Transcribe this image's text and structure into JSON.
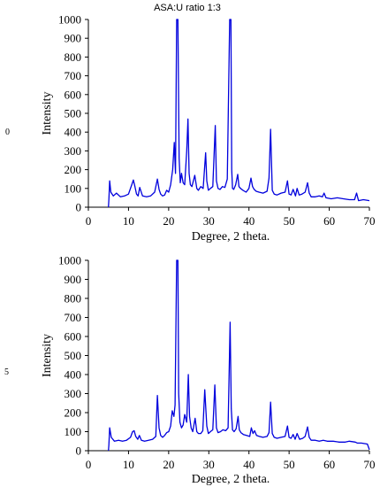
{
  "chart_data": [
    {
      "type": "line",
      "title": "ASA:U ratio 1:3",
      "side_label": "0",
      "xlabel": "Degree, 2 theta.",
      "ylabel": "Intensity",
      "xlim": [
        0,
        70
      ],
      "ylim": [
        0,
        1000
      ],
      "xticks": [
        0,
        10,
        20,
        30,
        40,
        50,
        60,
        70
      ],
      "yticks": [
        0,
        100,
        200,
        300,
        400,
        500,
        600,
        700,
        800,
        900,
        1000
      ],
      "grid": false,
      "series": [
        {
          "color": "#0000dd",
          "x": [
            5.0,
            5.1,
            5.3,
            5.6,
            6.2,
            7.0,
            8.0,
            9.0,
            10.0,
            10.8,
            11.2,
            11.6,
            12.0,
            12.4,
            12.8,
            13.5,
            14.5,
            15.5,
            16.5,
            17.2,
            17.6,
            18.0,
            18.5,
            19.0,
            19.5,
            20.0,
            20.5,
            21.0,
            21.4,
            21.7,
            22.0,
            22.3,
            22.6,
            22.9,
            23.2,
            23.6,
            24.0,
            24.5,
            24.8,
            25.1,
            25.4,
            25.8,
            26.5,
            27.0,
            27.4,
            28.0,
            28.6,
            29.2,
            29.5,
            29.9,
            30.4,
            31.0,
            31.6,
            31.9,
            32.3,
            32.8,
            33.4,
            34.0,
            34.6,
            35.2,
            35.5,
            35.7,
            35.9,
            36.2,
            36.7,
            37.2,
            37.5,
            37.9,
            38.5,
            39.3,
            40.0,
            40.5,
            40.9,
            41.3,
            41.8,
            42.5,
            43.5,
            44.5,
            45.0,
            45.4,
            45.8,
            46.3,
            47.0,
            48.0,
            49.0,
            49.6,
            50.0,
            50.5,
            51.0,
            51.6,
            52.0,
            52.5,
            53.2,
            54.0,
            54.6,
            55.0,
            55.5,
            56.5,
            57.5,
            58.3,
            58.7,
            59.2,
            60.5,
            62.0,
            63.5,
            65.0,
            66.3,
            66.8,
            67.3,
            68.5,
            70.0
          ],
          "y": [
            0,
            40,
            140,
            80,
            60,
            75,
            55,
            60,
            70,
            120,
            145,
            110,
            70,
            60,
            105,
            60,
            55,
            60,
            80,
            150,
            95,
            70,
            60,
            65,
            90,
            80,
            120,
            200,
            345,
            180,
            1000,
            1000,
            260,
            130,
            180,
            130,
            120,
            300,
            470,
            180,
            120,
            110,
            170,
            100,
            90,
            110,
            100,
            290,
            140,
            90,
            100,
            110,
            435,
            140,
            100,
            95,
            110,
            105,
            150,
            1000,
            1000,
            200,
            100,
            95,
            120,
            175,
            110,
            100,
            90,
            80,
            100,
            155,
            110,
            95,
            85,
            80,
            75,
            85,
            155,
            415,
            90,
            70,
            65,
            75,
            80,
            140,
            70,
            65,
            95,
            60,
            100,
            65,
            70,
            80,
            130,
            75,
            55,
            55,
            60,
            55,
            75,
            50,
            45,
            50,
            45,
            40,
            40,
            75,
            35,
            40,
            35
          ]
        }
      ]
    },
    {
      "type": "line",
      "title": "",
      "side_label": "5",
      "xlabel": "Degree, 2 theta.",
      "ylabel": "Intensity",
      "xlim": [
        0,
        70
      ],
      "ylim": [
        0,
        1000
      ],
      "xticks": [
        0,
        10,
        20,
        30,
        40,
        50,
        60,
        70
      ],
      "yticks": [
        0,
        100,
        200,
        300,
        400,
        500,
        600,
        700,
        800,
        900,
        1000
      ],
      "grid": false,
      "series": [
        {
          "color": "#0000dd",
          "x": [
            5.0,
            5.1,
            5.3,
            5.7,
            6.5,
            7.5,
            8.5,
            9.5,
            10.5,
            11.0,
            11.4,
            11.8,
            12.3,
            12.7,
            13.2,
            14.0,
            15.0,
            16.0,
            16.8,
            17.2,
            17.6,
            18.0,
            18.5,
            19.0,
            19.5,
            20.0,
            20.5,
            20.9,
            21.3,
            21.6,
            22.0,
            22.3,
            22.5,
            22.8,
            23.2,
            23.6,
            24.0,
            24.5,
            24.9,
            25.2,
            25.6,
            26.0,
            26.6,
            27.0,
            27.4,
            28.0,
            28.5,
            29.0,
            29.5,
            29.9,
            30.4,
            31.0,
            31.5,
            31.9,
            32.3,
            32.9,
            33.5,
            34.2,
            34.8,
            35.3,
            35.6,
            35.9,
            36.3,
            36.8,
            37.3,
            37.6,
            38.0,
            38.6,
            39.4,
            40.2,
            40.6,
            41.0,
            41.4,
            41.9,
            42.6,
            43.5,
            44.5,
            45.0,
            45.4,
            45.8,
            46.3,
            47.0,
            48.0,
            49.0,
            49.6,
            50.0,
            50.5,
            51.0,
            51.5,
            52.0,
            52.6,
            53.4,
            54.0,
            54.6,
            55.0,
            55.5,
            56.5,
            57.5,
            58.5,
            59.5,
            61.0,
            62.5,
            64.0,
            65.0,
            66.5,
            67.0,
            68.0,
            69.5,
            70.0
          ],
          "y": [
            0,
            30,
            120,
            70,
            50,
            55,
            50,
            55,
            70,
            100,
            105,
            75,
            60,
            80,
            55,
            50,
            55,
            60,
            75,
            290,
            120,
            80,
            70,
            80,
            95,
            100,
            130,
            210,
            180,
            240,
            1000,
            1000,
            300,
            150,
            120,
            135,
            190,
            150,
            400,
            180,
            120,
            100,
            170,
            100,
            90,
            90,
            105,
            320,
            130,
            90,
            100,
            110,
            345,
            120,
            95,
            100,
            110,
            105,
            120,
            675,
            220,
            110,
            100,
            115,
            180,
            110,
            95,
            85,
            80,
            75,
            120,
            90,
            105,
            80,
            75,
            70,
            75,
            95,
            255,
            90,
            70,
            65,
            70,
            75,
            130,
            70,
            65,
            85,
            60,
            90,
            60,
            65,
            75,
            125,
            70,
            55,
            55,
            50,
            55,
            50,
            50,
            45,
            45,
            50,
            45,
            40,
            40,
            35,
            5
          ]
        }
      ]
    }
  ]
}
